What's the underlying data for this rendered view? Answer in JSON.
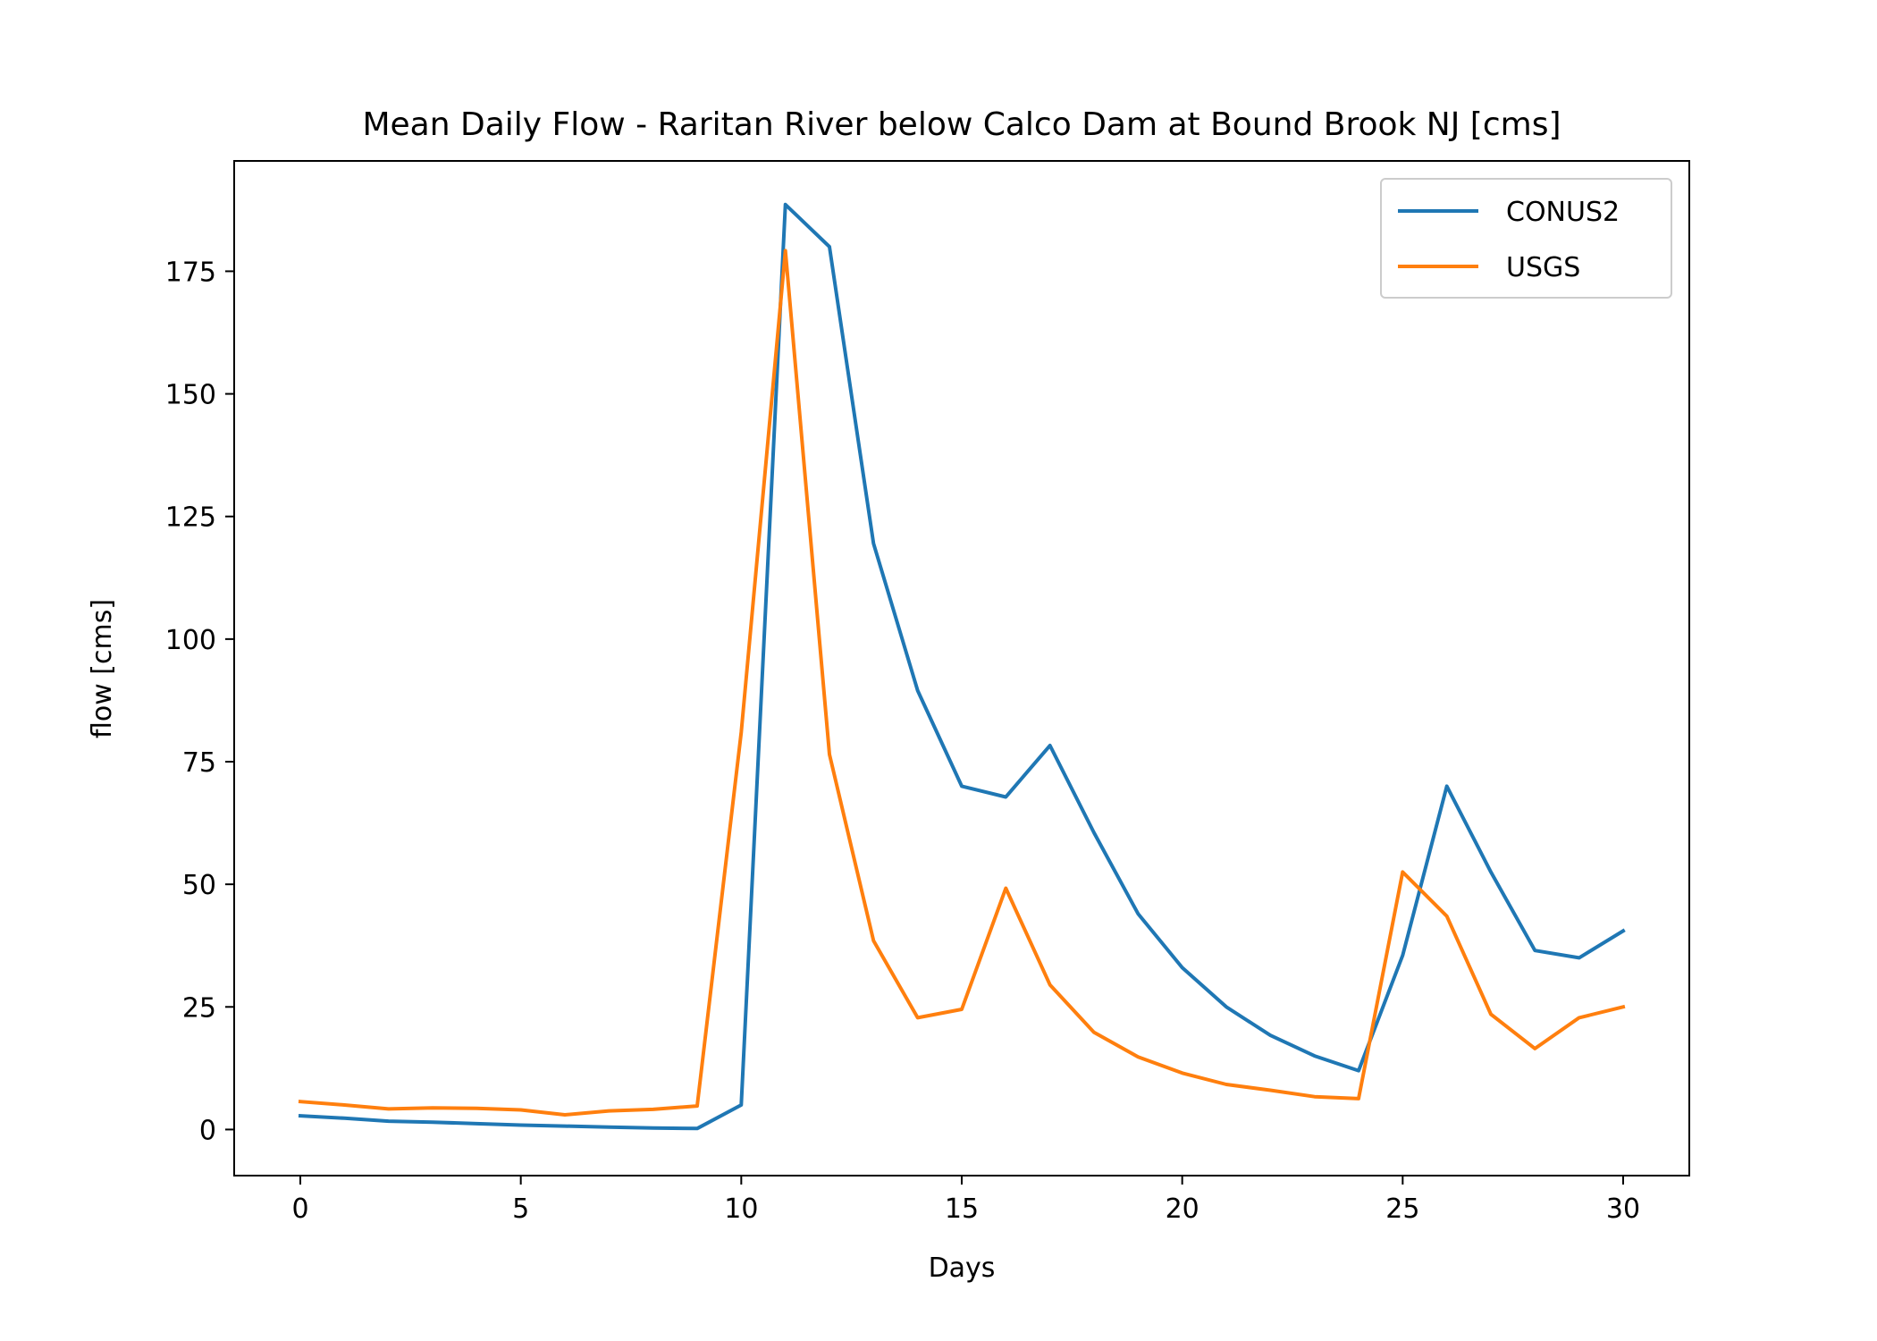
{
  "chart_data": {
    "type": "line",
    "title": "Mean Daily Flow - Raritan River below Calco Dam at Bound Brook NJ [cms]",
    "xlabel": "Days",
    "ylabel": "flow [cms]",
    "xlim": [
      -1.5,
      31.5
    ],
    "ylim": [
      -9.4,
      197.5
    ],
    "xticks": [
      0,
      5,
      10,
      15,
      20,
      25,
      30
    ],
    "yticks": [
      0,
      25,
      50,
      75,
      100,
      125,
      150,
      175
    ],
    "grid": false,
    "legend_position": "upper right",
    "x": [
      0,
      1,
      2,
      3,
      4,
      5,
      6,
      7,
      8,
      9,
      10,
      11,
      12,
      13,
      14,
      15,
      16,
      17,
      18,
      19,
      20,
      21,
      22,
      23,
      24,
      25,
      26,
      27,
      28,
      29,
      30
    ],
    "series": [
      {
        "name": "CONUS2",
        "color": "#1f77b4",
        "values": [
          2.8,
          2.3,
          1.7,
          1.5,
          1.2,
          0.9,
          0.7,
          0.5,
          0.3,
          0.2,
          5.0,
          188.6,
          180.0,
          119.5,
          89.5,
          70.0,
          67.8,
          78.3,
          60.5,
          44.0,
          33.0,
          25.0,
          19.2,
          15.0,
          12.0,
          35.5,
          70.0,
          52.5,
          36.5,
          35.0,
          40.5
        ]
      },
      {
        "name": "USGS",
        "color": "#ff7f0e",
        "values": [
          5.7,
          5.0,
          4.2,
          4.4,
          4.3,
          4.0,
          3.0,
          3.8,
          4.1,
          4.8,
          81.0,
          179.2,
          76.5,
          38.5,
          22.8,
          24.5,
          49.2,
          29.5,
          19.8,
          14.8,
          11.5,
          9.2,
          8.0,
          6.7,
          6.3,
          52.5,
          43.5,
          23.5,
          16.5,
          22.8,
          25.0
        ]
      }
    ]
  }
}
